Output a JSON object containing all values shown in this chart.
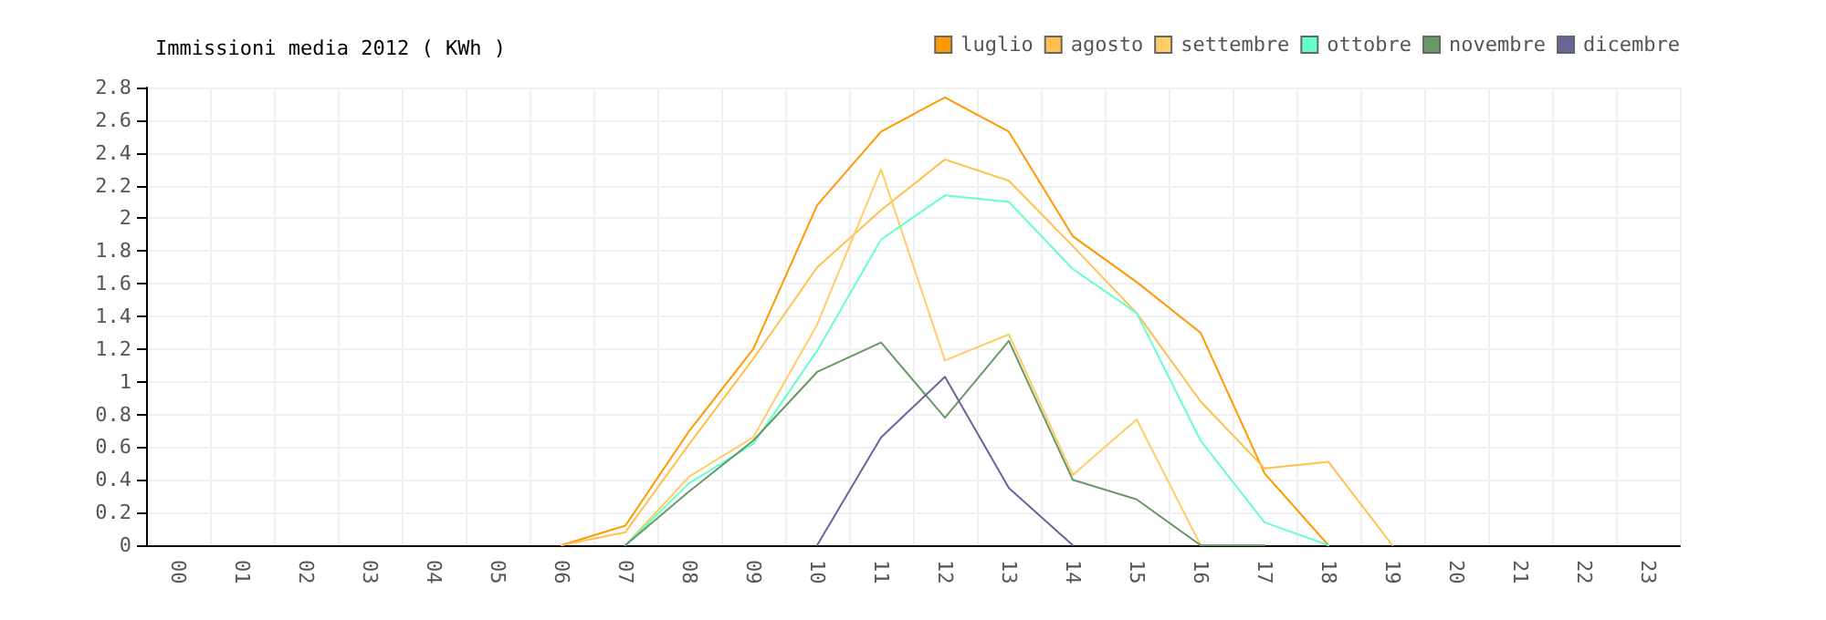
{
  "chart_data": {
    "type": "line",
    "title": "Immissioni media 2012 ( KWh )",
    "categories": [
      "00",
      "01",
      "02",
      "03",
      "04",
      "05",
      "06",
      "07",
      "08",
      "09",
      "10",
      "11",
      "12",
      "13",
      "14",
      "15",
      "16",
      "17",
      "18",
      "19",
      "20",
      "21",
      "22",
      "23"
    ],
    "series": [
      {
        "name": "luglio",
        "color": "#ff9900",
        "values": [
          null,
          null,
          null,
          null,
          null,
          null,
          0,
          0.12,
          0.7,
          1.2,
          2.08,
          2.53,
          2.74,
          2.53,
          1.89,
          1.61,
          1.3,
          0.44,
          0,
          null,
          null,
          null,
          null,
          null
        ]
      },
      {
        "name": "agosto",
        "color": "#ffc04d",
        "values": [
          null,
          null,
          null,
          null,
          null,
          null,
          0,
          0.08,
          0.62,
          1.14,
          1.7,
          2.05,
          2.36,
          2.23,
          1.83,
          1.42,
          0.88,
          0.47,
          0.51,
          0,
          null,
          null,
          null,
          null
        ]
      },
      {
        "name": "settembre",
        "color": "#ffcc66",
        "values": [
          null,
          null,
          null,
          null,
          null,
          null,
          null,
          0,
          0.42,
          0.66,
          1.35,
          2.3,
          1.13,
          1.29,
          0.43,
          0.77,
          0,
          null,
          null,
          null,
          null,
          null,
          null,
          null
        ]
      },
      {
        "name": "ottobre",
        "color": "#66ffcc",
        "values": [
          null,
          null,
          null,
          null,
          null,
          null,
          null,
          0,
          0.38,
          0.62,
          1.19,
          1.87,
          2.14,
          2.1,
          1.69,
          1.42,
          0.64,
          0.14,
          0,
          null,
          null,
          null,
          null,
          null
        ]
      },
      {
        "name": "novembre",
        "color": "#669966",
        "values": [
          null,
          null,
          null,
          null,
          null,
          null,
          null,
          0,
          0.33,
          0.64,
          1.06,
          1.24,
          0.78,
          1.25,
          0.4,
          0.28,
          0,
          0,
          null,
          null,
          null,
          null,
          null,
          null
        ]
      },
      {
        "name": "dicembre",
        "color": "#666699",
        "values": [
          null,
          null,
          null,
          null,
          null,
          null,
          null,
          null,
          null,
          null,
          0,
          0.66,
          1.03,
          0.35,
          0,
          null,
          null,
          null,
          null,
          null,
          null,
          null,
          null,
          null
        ]
      }
    ],
    "ylim": [
      0,
      2.8
    ],
    "yticks": [
      0,
      0.2,
      0.4,
      0.6,
      0.8,
      1,
      1.2,
      1.4,
      1.6,
      1.8,
      2,
      2.2,
      2.4,
      2.6,
      2.8
    ],
    "grid": true,
    "legend": "top right",
    "marker": "none",
    "line_style": "solid"
  }
}
